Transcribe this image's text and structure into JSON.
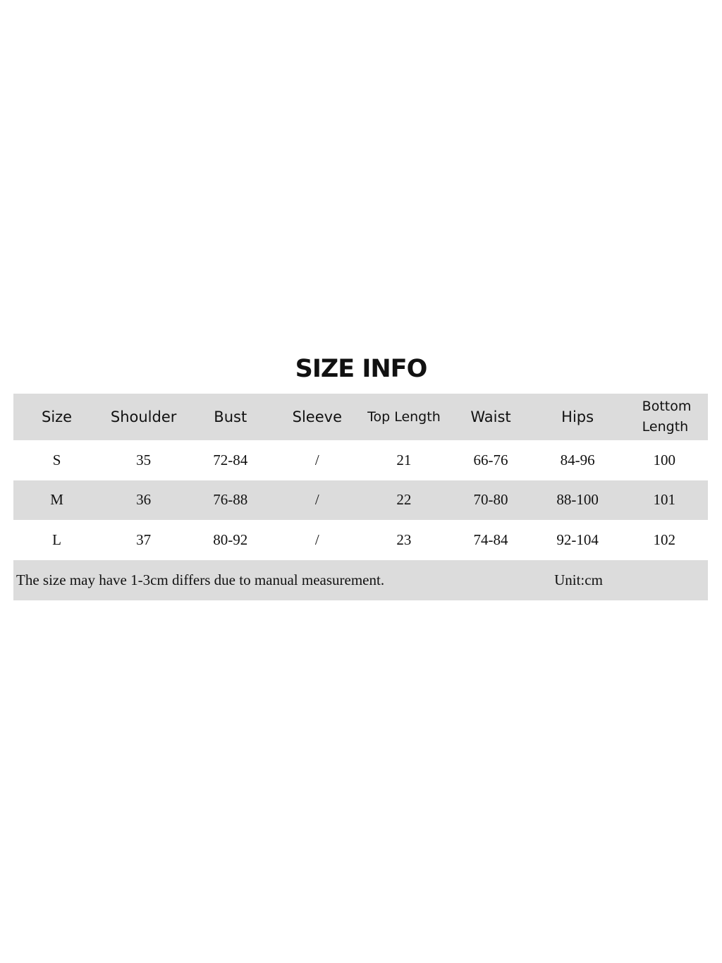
{
  "title": "SIZE INFO",
  "headers": [
    "Size",
    "Shoulder",
    "Bust",
    "Sleeve",
    "Top Length",
    "Waist",
    "Hips",
    "Bottom Length"
  ],
  "rows": [
    [
      "S",
      "35",
      "72-84",
      "/",
      "21",
      "66-76",
      "84-96",
      "100"
    ],
    [
      "M",
      "36",
      "76-88",
      "/",
      "22",
      "70-80",
      "88-100",
      "101"
    ],
    [
      "L",
      "37",
      "80-92",
      "/",
      "23",
      "74-84",
      "92-104",
      "102"
    ]
  ],
  "footer": {
    "note": "The size may have 1-3cm differs due to manual measurement.",
    "unit": "Unit:cm"
  },
  "colors": {
    "band": "#dcdcdc",
    "text": "#111111"
  }
}
